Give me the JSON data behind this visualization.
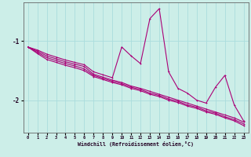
{
  "xlabel": "Windchill (Refroidissement éolien,°C)",
  "background_color": "#cceee8",
  "grid_color": "#aadddd",
  "line_color": "#aa0077",
  "x": [
    0,
    1,
    2,
    3,
    4,
    5,
    6,
    7,
    8,
    9,
    10,
    11,
    12,
    13,
    14,
    15,
    16,
    17,
    18,
    19,
    20,
    21,
    22,
    23
  ],
  "y_spike": [
    -1.1,
    -1.15,
    -1.22,
    -1.27,
    -1.32,
    -1.36,
    -1.4,
    -1.52,
    -1.57,
    -1.62,
    -1.1,
    -1.25,
    -1.38,
    -0.62,
    -0.45,
    -1.52,
    -1.8,
    -1.88,
    -2.0,
    -2.05,
    -1.78,
    -1.58,
    -2.08,
    -2.35
  ],
  "y_lin1": [
    -1.1,
    -1.17,
    -1.25,
    -1.3,
    -1.35,
    -1.39,
    -1.43,
    -1.56,
    -1.61,
    -1.66,
    -1.7,
    -1.76,
    -1.8,
    -1.85,
    -1.9,
    -1.95,
    -2.0,
    -2.05,
    -2.1,
    -2.15,
    -2.2,
    -2.25,
    -2.3,
    -2.37
  ],
  "y_lin2": [
    -1.1,
    -1.19,
    -1.28,
    -1.33,
    -1.38,
    -1.42,
    -1.47,
    -1.58,
    -1.63,
    -1.68,
    -1.72,
    -1.78,
    -1.82,
    -1.88,
    -1.92,
    -1.98,
    -2.02,
    -2.08,
    -2.12,
    -2.18,
    -2.22,
    -2.28,
    -2.33,
    -2.4
  ],
  "y_lin3": [
    -1.1,
    -1.21,
    -1.31,
    -1.36,
    -1.41,
    -1.45,
    -1.5,
    -1.6,
    -1.65,
    -1.7,
    -1.74,
    -1.8,
    -1.84,
    -1.9,
    -1.94,
    -2.0,
    -2.04,
    -2.1,
    -2.14,
    -2.2,
    -2.24,
    -2.3,
    -2.35,
    -2.43
  ],
  "ylim": [
    -2.55,
    -0.35
  ],
  "xlim": [
    -0.5,
    23.5
  ],
  "yticks": [
    -2,
    -1
  ],
  "xticks": [
    0,
    1,
    2,
    3,
    4,
    5,
    6,
    7,
    8,
    9,
    10,
    11,
    12,
    13,
    14,
    15,
    16,
    17,
    18,
    19,
    20,
    21,
    22,
    23
  ]
}
